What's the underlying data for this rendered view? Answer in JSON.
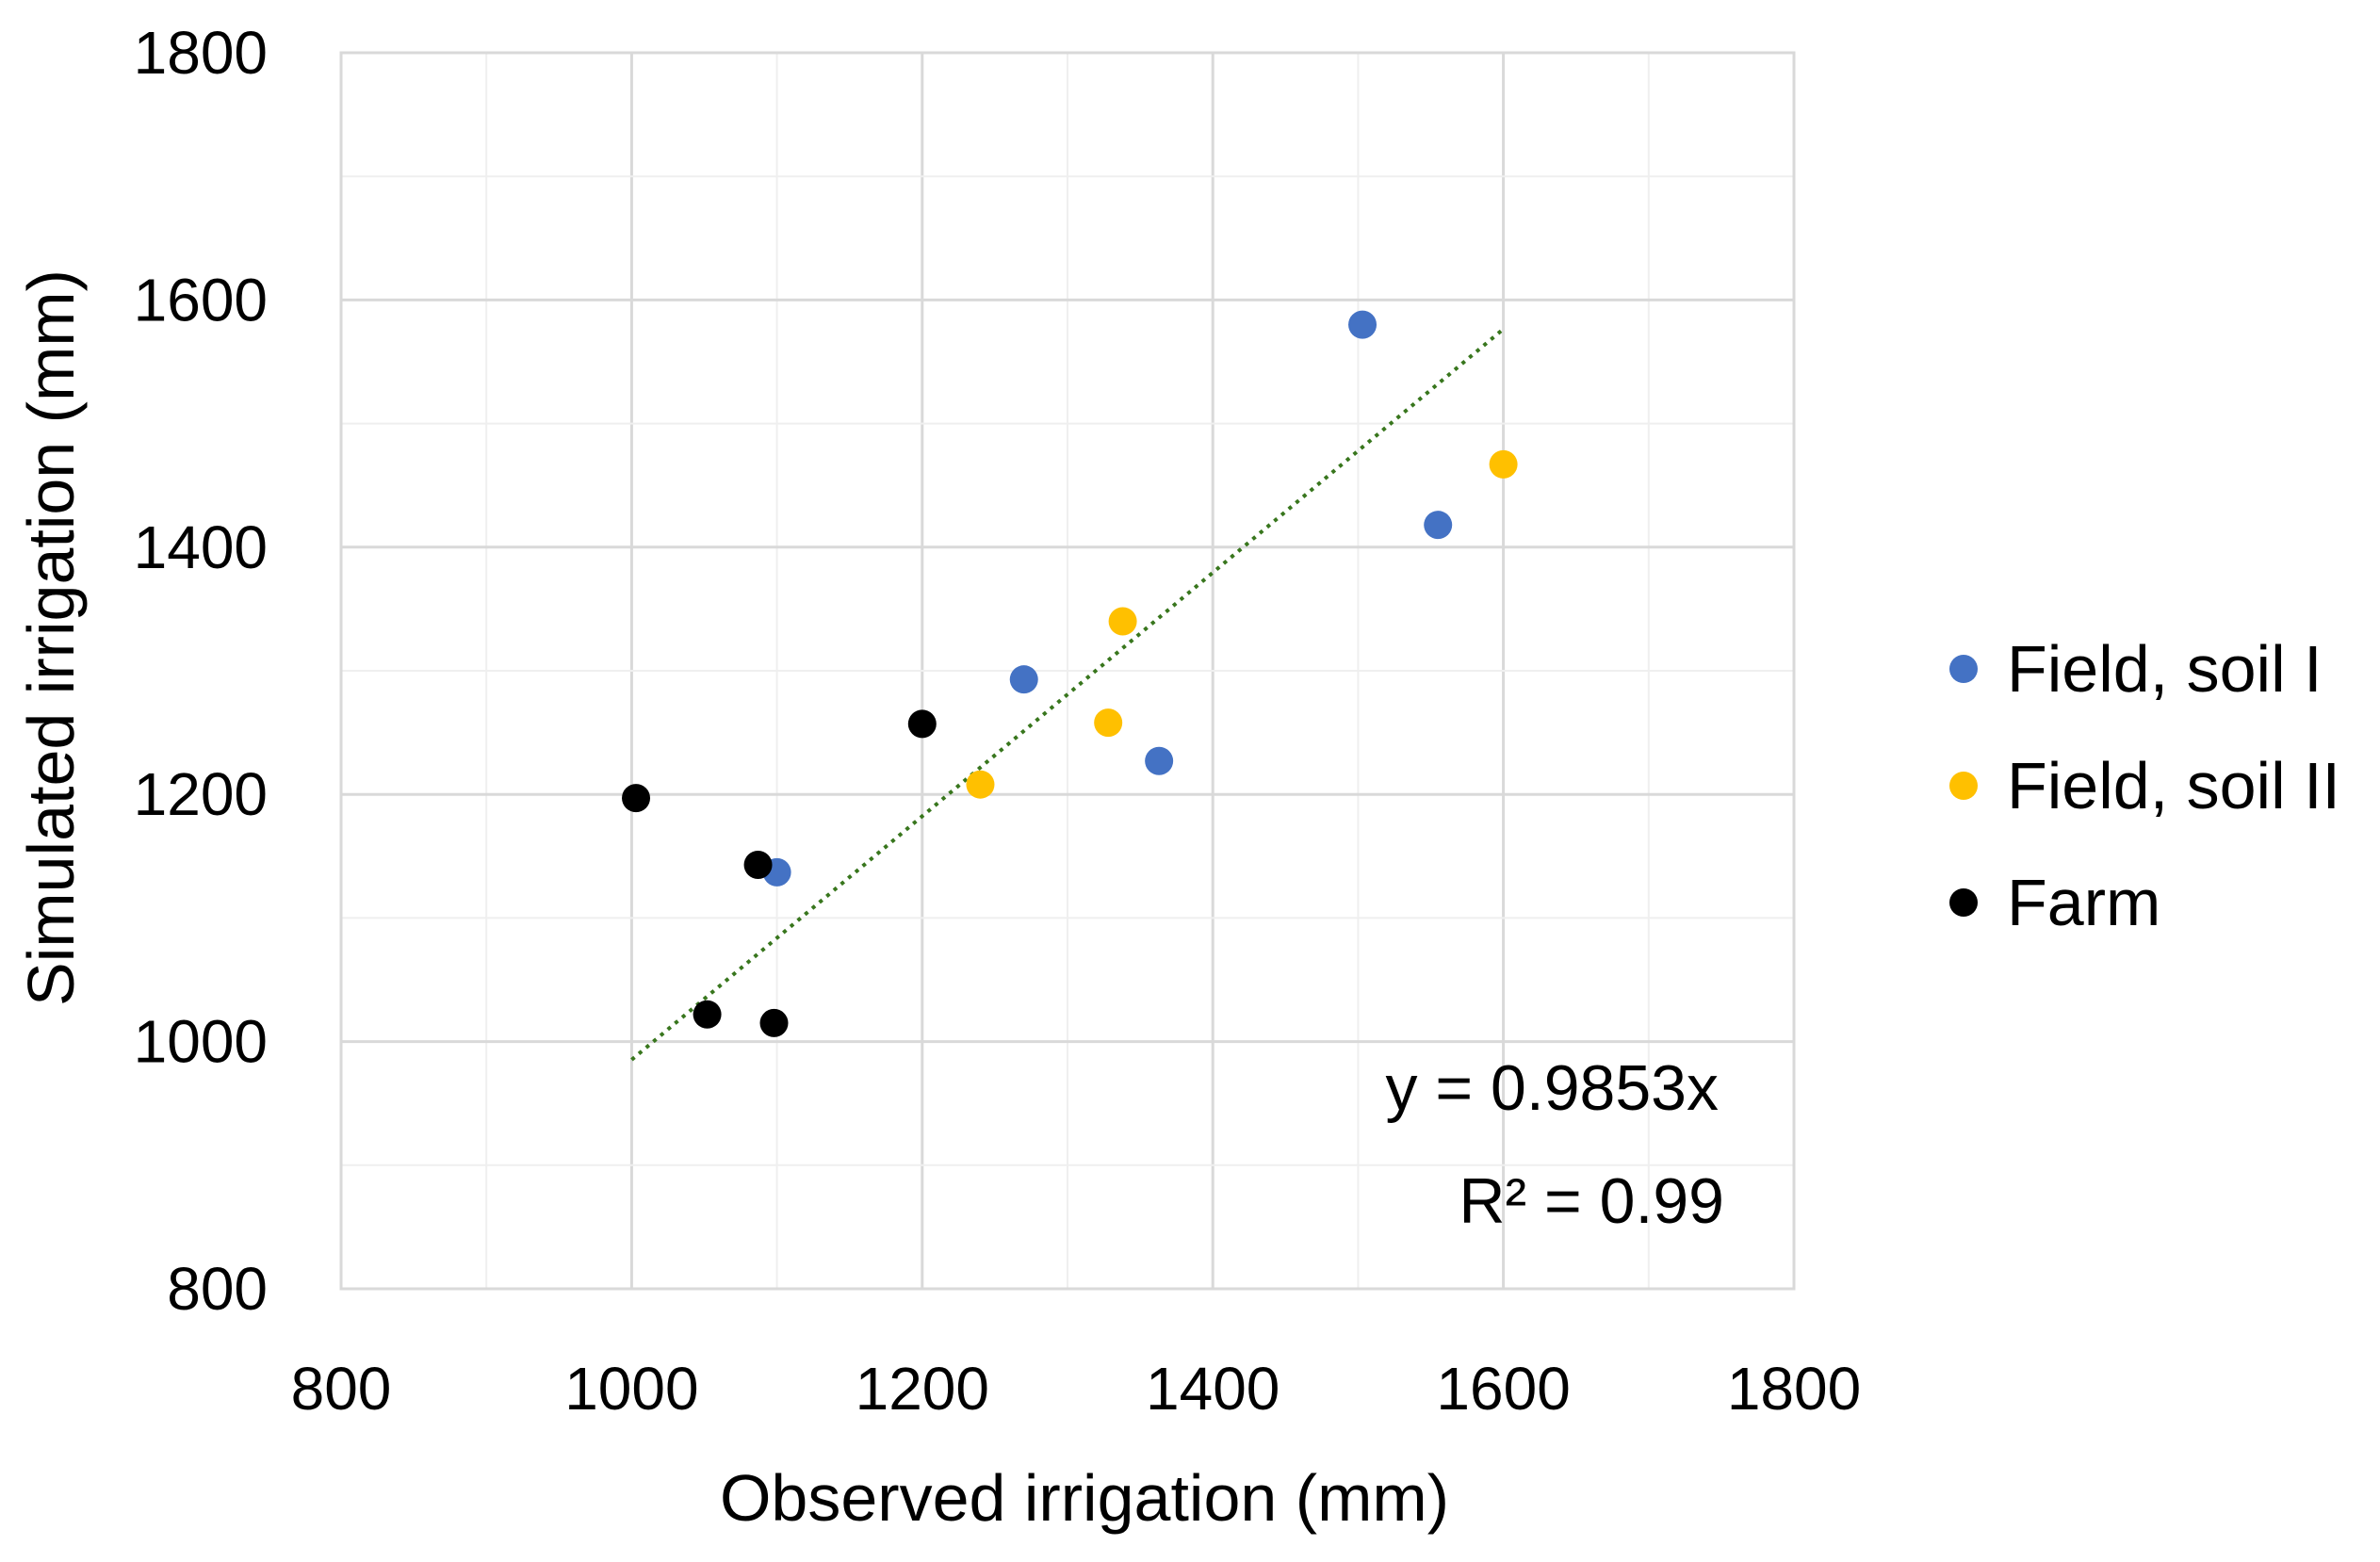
{
  "chart_data": {
    "type": "scatter",
    "xlabel": "Observed irrigation (mm)",
    "ylabel": "Simulated irrigation (mm)",
    "xlim": [
      800,
      1800
    ],
    "ylim": [
      800,
      1800
    ],
    "xticks": [
      800,
      1000,
      1200,
      1400,
      1600,
      1800
    ],
    "yticks": [
      800,
      1000,
      1200,
      1400,
      1600,
      1800
    ],
    "x_minor_step": 100,
    "y_minor_step": 100,
    "grid": true,
    "legend_position": "right",
    "series": [
      {
        "name": "Field, soil I",
        "color": "#4472C4",
        "points": [
          {
            "x": 1100,
            "y": 1137
          },
          {
            "x": 1270,
            "y": 1293
          },
          {
            "x": 1363,
            "y": 1227
          },
          {
            "x": 1503,
            "y": 1580
          },
          {
            "x": 1555,
            "y": 1418
          }
        ]
      },
      {
        "name": "Field, soil II",
        "color": "#FFC000",
        "points": [
          {
            "x": 1240,
            "y": 1208
          },
          {
            "x": 1328,
            "y": 1258
          },
          {
            "x": 1338,
            "y": 1340
          },
          {
            "x": 1600,
            "y": 1467
          }
        ]
      },
      {
        "name": "Farm",
        "color": "#000000",
        "points": [
          {
            "x": 1003,
            "y": 1197
          },
          {
            "x": 1052,
            "y": 1022
          },
          {
            "x": 1087,
            "y": 1143
          },
          {
            "x": 1098,
            "y": 1015
          },
          {
            "x": 1200,
            "y": 1257
          }
        ]
      }
    ],
    "trendline": {
      "color": "#38761D",
      "slope": 0.9853,
      "x_start": 1000,
      "x_end": 1600
    },
    "annotations": {
      "equation": "y = 0.9853x",
      "r_squared": "R² = 0.99"
    }
  }
}
